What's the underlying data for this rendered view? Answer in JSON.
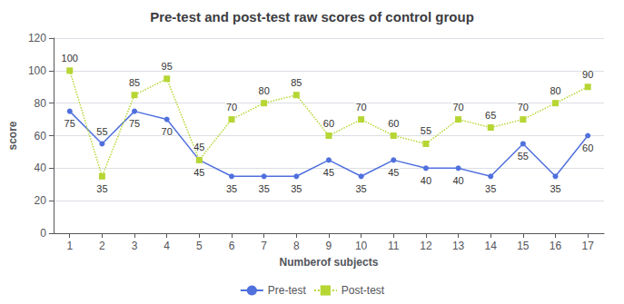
{
  "chart_data": {
    "type": "line",
    "title": "Pre-test and post-test raw scores of control group",
    "xlabel": "Numberof subjects",
    "ylabel": "score",
    "x": [
      1,
      2,
      3,
      4,
      5,
      6,
      7,
      8,
      9,
      10,
      11,
      12,
      13,
      14,
      15,
      16,
      17
    ],
    "series": [
      {
        "name": "Pre-test",
        "marker": "circle",
        "line_style": "solid",
        "values": [
          75,
          55,
          75,
          70,
          45,
          35,
          35,
          35,
          45,
          35,
          45,
          40,
          40,
          35,
          55,
          35,
          60
        ]
      },
      {
        "name": "Post-test",
        "marker": "square",
        "line_style": "dotted",
        "values": [
          100,
          35,
          85,
          95,
          45,
          70,
          80,
          85,
          60,
          70,
          60,
          55,
          70,
          65,
          70,
          80,
          90
        ]
      }
    ],
    "xlim": [
      0.5,
      17.5
    ],
    "xticks": [
      1,
      2,
      3,
      4,
      5,
      6,
      7,
      8,
      9,
      10,
      11,
      12,
      13,
      14,
      15,
      16,
      17
    ],
    "ylim": [
      0,
      120
    ],
    "yticks": [
      0,
      20,
      40,
      60,
      80,
      100,
      120
    ],
    "grid": true,
    "legend": "bottom",
    "data_labels": true
  }
}
